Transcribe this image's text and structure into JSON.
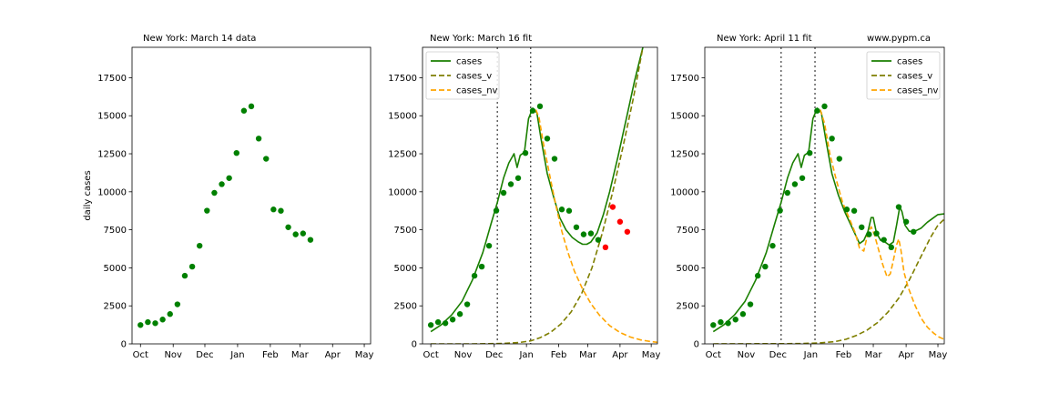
{
  "chart_data": [
    {
      "type": "scatter",
      "title": "New York:  March 14 data",
      "ylabel": "daily cases",
      "xlabel": "",
      "x_ticks": [
        "Oct",
        "Nov",
        "Dec",
        "Jan",
        "Feb",
        "Mar",
        "Apr",
        "May"
      ],
      "x_tick_days": [
        0,
        31,
        61,
        92,
        123,
        151,
        182,
        212
      ],
      "y_ticks": [
        "0",
        "2500",
        "5000",
        "7500",
        "10000",
        "12500",
        "15000",
        "17500"
      ],
      "xlim": [
        -8,
        218
      ],
      "ylim": [
        0,
        19500
      ],
      "legend": null,
      "colors": {
        "points": "#008000"
      },
      "points": [
        {
          "day": 0,
          "value": 1240
        },
        {
          "day": 7,
          "value": 1430
        },
        {
          "day": 14,
          "value": 1360
        },
        {
          "day": 21,
          "value": 1600
        },
        {
          "day": 28,
          "value": 1960
        },
        {
          "day": 35,
          "value": 2600
        },
        {
          "day": 42,
          "value": 4480
        },
        {
          "day": 49,
          "value": 5080
        },
        {
          "day": 56,
          "value": 6450
        },
        {
          "day": 63,
          "value": 8760
        },
        {
          "day": 70,
          "value": 9930
        },
        {
          "day": 77,
          "value": 10500
        },
        {
          "day": 84,
          "value": 10900
        },
        {
          "day": 91,
          "value": 12550
        },
        {
          "day": 98,
          "value": 15330
        },
        {
          "day": 105,
          "value": 15620
        },
        {
          "day": 112,
          "value": 13500
        },
        {
          "day": 119,
          "value": 12170
        },
        {
          "day": 126,
          "value": 8840
        },
        {
          "day": 133,
          "value": 8750
        },
        {
          "day": 140,
          "value": 7670
        },
        {
          "day": 147,
          "value": 7200
        },
        {
          "day": 154,
          "value": 7260
        },
        {
          "day": 161,
          "value": 6840
        }
      ]
    },
    {
      "type": "line",
      "title": "New York:  March 16 fit",
      "ylabel": "",
      "xlabel": "",
      "x_ticks": [
        "Oct",
        "Nov",
        "Dec",
        "Jan",
        "Feb",
        "Mar",
        "Apr",
        "May"
      ],
      "x_tick_days": [
        0,
        31,
        61,
        92,
        123,
        151,
        182,
        212
      ],
      "y_ticks": [
        "0",
        "2500",
        "5000",
        "7500",
        "10000",
        "12500",
        "15000",
        "17500"
      ],
      "xlim": [
        -8,
        218
      ],
      "ylim": [
        0,
        19500
      ],
      "vlines": [
        64,
        96
      ],
      "legend": {
        "position": "top-left",
        "entries": [
          "cases",
          "cases_v",
          "cases_nv"
        ]
      },
      "colors": {
        "cases": "#1a7f00",
        "cases_v": "#7f7f00",
        "cases_nv": "#ffa500",
        "points": "#008000",
        "new_points": "#ff0000"
      },
      "series": [
        {
          "name": "cases",
          "style": "solid",
          "color": "#1a7f00",
          "points": [
            [
              0,
              800
            ],
            [
              10,
              1250
            ],
            [
              20,
              1900
            ],
            [
              30,
              2800
            ],
            [
              40,
              4200
            ],
            [
              50,
              6000
            ],
            [
              58,
              7900
            ],
            [
              64,
              9300
            ],
            [
              70,
              10900
            ],
            [
              75,
              11900
            ],
            [
              80,
              12500
            ],
            [
              83,
              11600
            ],
            [
              86,
              12400
            ],
            [
              90,
              12600
            ],
            [
              94,
              14800
            ],
            [
              98,
              15500
            ],
            [
              102,
              15200
            ],
            [
              106,
              13500
            ],
            [
              112,
              11200
            ],
            [
              118,
              9700
            ],
            [
              124,
              8300
            ],
            [
              130,
              7500
            ],
            [
              136,
              7000
            ],
            [
              142,
              6700
            ],
            [
              146,
              6550
            ],
            [
              150,
              6550
            ],
            [
              154,
              6700
            ],
            [
              160,
              7300
            ],
            [
              166,
              8500
            ],
            [
              172,
              10000
            ],
            [
              180,
              12300
            ],
            [
              188,
              14800
            ],
            [
              196,
              17300
            ],
            [
              204,
              19500
            ],
            [
              218,
              22000
            ]
          ]
        },
        {
          "name": "cases_v",
          "style": "dashed",
          "color": "#7f7f00",
          "points": [
            [
              0,
              0
            ],
            [
              40,
              0
            ],
            [
              70,
              30
            ],
            [
              85,
              90
            ],
            [
              96,
              200
            ],
            [
              105,
              400
            ],
            [
              115,
              750
            ],
            [
              125,
              1300
            ],
            [
              135,
              2100
            ],
            [
              145,
              3300
            ],
            [
              155,
              5000
            ],
            [
              165,
              7300
            ],
            [
              175,
              10000
            ],
            [
              185,
              13000
            ],
            [
              195,
              16200
            ],
            [
              204,
              19500
            ],
            [
              218,
              22000
            ]
          ]
        },
        {
          "name": "cases_nv",
          "style": "dashed",
          "color": "#ffa500",
          "points": [
            [
              101,
              15400
            ],
            [
              104,
              14900
            ],
            [
              108,
              13300
            ],
            [
              114,
              11200
            ],
            [
              120,
              9200
            ],
            [
              126,
              7400
            ],
            [
              132,
              6000
            ],
            [
              138,
              4800
            ],
            [
              146,
              3600
            ],
            [
              154,
              2650
            ],
            [
              162,
              1900
            ],
            [
              172,
              1200
            ],
            [
              182,
              750
            ],
            [
              192,
              450
            ],
            [
              202,
              260
            ],
            [
              212,
              150
            ],
            [
              218,
              100
            ]
          ]
        }
      ],
      "points": [
        {
          "day": 0,
          "value": 1240
        },
        {
          "day": 7,
          "value": 1430
        },
        {
          "day": 14,
          "value": 1360
        },
        {
          "day": 21,
          "value": 1600
        },
        {
          "day": 28,
          "value": 1960
        },
        {
          "day": 35,
          "value": 2600
        },
        {
          "day": 42,
          "value": 4480
        },
        {
          "day": 49,
          "value": 5080
        },
        {
          "day": 56,
          "value": 6450
        },
        {
          "day": 63,
          "value": 8760
        },
        {
          "day": 70,
          "value": 9930
        },
        {
          "day": 77,
          "value": 10500
        },
        {
          "day": 84,
          "value": 10900
        },
        {
          "day": 91,
          "value": 12550
        },
        {
          "day": 98,
          "value": 15330
        },
        {
          "day": 105,
          "value": 15620
        },
        {
          "day": 112,
          "value": 13500
        },
        {
          "day": 119,
          "value": 12170
        },
        {
          "day": 126,
          "value": 8840
        },
        {
          "day": 133,
          "value": 8750
        },
        {
          "day": 140,
          "value": 7670
        },
        {
          "day": 147,
          "value": 7200
        },
        {
          "day": 154,
          "value": 7260
        },
        {
          "day": 161,
          "value": 6840
        }
      ],
      "new_points": [
        {
          "day": 168,
          "value": 6350
        },
        {
          "day": 175,
          "value": 9000
        },
        {
          "day": 182,
          "value": 8030
        },
        {
          "day": 189,
          "value": 7370
        }
      ]
    },
    {
      "type": "line",
      "title": "New York:  April 11 fit",
      "annotation": "www.pypm.ca",
      "ylabel": "",
      "xlabel": "",
      "x_ticks": [
        "Oct",
        "Nov",
        "Dec",
        "Jan",
        "Feb",
        "Mar",
        "Apr",
        "May"
      ],
      "x_tick_days": [
        0,
        31,
        61,
        92,
        123,
        151,
        182,
        212
      ],
      "y_ticks": [
        "0",
        "2500",
        "5000",
        "7500",
        "10000",
        "12500",
        "15000",
        "17500"
      ],
      "xlim": [
        -8,
        218
      ],
      "ylim": [
        0,
        19500
      ],
      "vlines": [
        64,
        96
      ],
      "legend": {
        "position": "top-right",
        "entries": [
          "cases",
          "cases_v",
          "cases_nv"
        ]
      },
      "colors": {
        "cases": "#1a7f00",
        "cases_v": "#7f7f00",
        "cases_nv": "#ffa500",
        "points": "#008000"
      },
      "series": [
        {
          "name": "cases",
          "style": "solid",
          "color": "#1a7f00",
          "points": [
            [
              0,
              800
            ],
            [
              10,
              1250
            ],
            [
              20,
              1900
            ],
            [
              30,
              2800
            ],
            [
              40,
              4200
            ],
            [
              50,
              6000
            ],
            [
              58,
              7900
            ],
            [
              64,
              9300
            ],
            [
              70,
              10900
            ],
            [
              75,
              11900
            ],
            [
              80,
              12500
            ],
            [
              83,
              11600
            ],
            [
              86,
              12400
            ],
            [
              90,
              12600
            ],
            [
              94,
              14800
            ],
            [
              98,
              15500
            ],
            [
              102,
              15200
            ],
            [
              106,
              13500
            ],
            [
              112,
              11200
            ],
            [
              118,
              9800
            ],
            [
              124,
              8700
            ],
            [
              130,
              7800
            ],
            [
              134,
              7200
            ],
            [
              138,
              6600
            ],
            [
              142,
              6800
            ],
            [
              146,
              7400
            ],
            [
              149,
              8300
            ],
            [
              151,
              8300
            ],
            [
              154,
              7300
            ],
            [
              158,
              6800
            ],
            [
              162,
              6700
            ],
            [
              166,
              6500
            ],
            [
              170,
              6700
            ],
            [
              173,
              7800
            ],
            [
              176,
              9000
            ],
            [
              178,
              8700
            ],
            [
              181,
              7800
            ],
            [
              185,
              7400
            ],
            [
              190,
              7400
            ],
            [
              196,
              7600
            ],
            [
              202,
              8000
            ],
            [
              208,
              8300
            ],
            [
              212,
              8500
            ],
            [
              218,
              8550
            ]
          ]
        },
        {
          "name": "cases_v",
          "style": "dashed",
          "color": "#7f7f00",
          "points": [
            [
              0,
              0
            ],
            [
              80,
              20
            ],
            [
              100,
              60
            ],
            [
              115,
              150
            ],
            [
              125,
              300
            ],
            [
              135,
              550
            ],
            [
              145,
              900
            ],
            [
              155,
              1400
            ],
            [
              165,
              2100
            ],
            [
              175,
              3000
            ],
            [
              185,
              4200
            ],
            [
              195,
              5600
            ],
            [
              205,
              7000
            ],
            [
              212,
              7800
            ],
            [
              218,
              8200
            ]
          ]
        },
        {
          "name": "cases_nv",
          "style": "dashed",
          "color": "#ffa500",
          "points": [
            [
              101,
              15400
            ],
            [
              105,
              14500
            ],
            [
              110,
              12500
            ],
            [
              116,
              10800
            ],
            [
              122,
              9300
            ],
            [
              128,
              8300
            ],
            [
              134,
              7300
            ],
            [
              138,
              6300
            ],
            [
              142,
              6100
            ],
            [
              146,
              7300
            ],
            [
              149,
              7700
            ],
            [
              152,
              7200
            ],
            [
              156,
              6200
            ],
            [
              160,
              5200
            ],
            [
              164,
              4400
            ],
            [
              167,
              4600
            ],
            [
              170,
              5500
            ],
            [
              173,
              6500
            ],
            [
              175,
              6900
            ],
            [
              177,
              6200
            ],
            [
              180,
              4700
            ],
            [
              184,
              3700
            ],
            [
              190,
              2600
            ],
            [
              196,
              1700
            ],
            [
              202,
              1100
            ],
            [
              208,
              700
            ],
            [
              213,
              450
            ],
            [
              218,
              300
            ]
          ]
        }
      ],
      "points": [
        {
          "day": 0,
          "value": 1240
        },
        {
          "day": 7,
          "value": 1430
        },
        {
          "day": 14,
          "value": 1360
        },
        {
          "day": 21,
          "value": 1600
        },
        {
          "day": 28,
          "value": 1960
        },
        {
          "day": 35,
          "value": 2600
        },
        {
          "day": 42,
          "value": 4480
        },
        {
          "day": 49,
          "value": 5080
        },
        {
          "day": 56,
          "value": 6450
        },
        {
          "day": 63,
          "value": 8760
        },
        {
          "day": 70,
          "value": 9930
        },
        {
          "day": 77,
          "value": 10500
        },
        {
          "day": 84,
          "value": 10900
        },
        {
          "day": 91,
          "value": 12550
        },
        {
          "day": 98,
          "value": 15330
        },
        {
          "day": 105,
          "value": 15620
        },
        {
          "day": 112,
          "value": 13500
        },
        {
          "day": 119,
          "value": 12170
        },
        {
          "day": 126,
          "value": 8840
        },
        {
          "day": 133,
          "value": 8750
        },
        {
          "day": 140,
          "value": 7670
        },
        {
          "day": 147,
          "value": 7200
        },
        {
          "day": 154,
          "value": 7260
        },
        {
          "day": 161,
          "value": 6840
        },
        {
          "day": 168,
          "value": 6350
        },
        {
          "day": 175,
          "value": 9000
        },
        {
          "day": 182,
          "value": 8030
        },
        {
          "day": 189,
          "value": 7370
        }
      ]
    }
  ]
}
